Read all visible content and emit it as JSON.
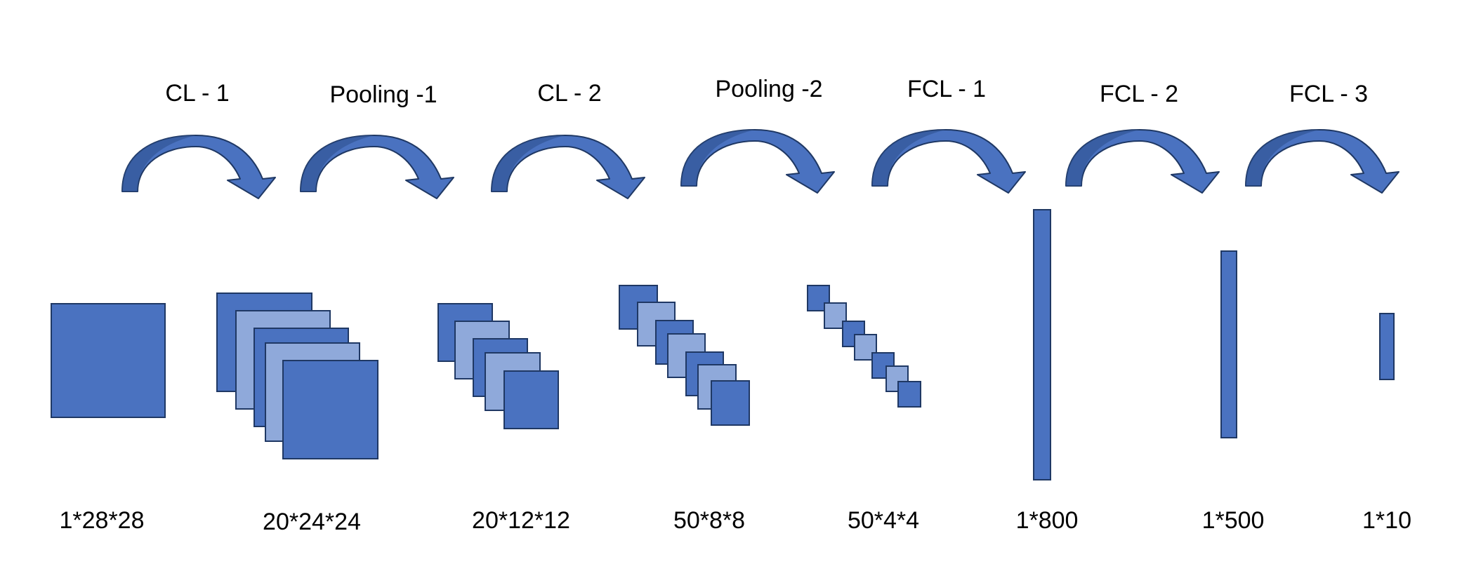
{
  "operations": [
    {
      "label": "CL - 1"
    },
    {
      "label": "Pooling -1"
    },
    {
      "label": "CL - 2"
    },
    {
      "label": "Pooling -2"
    },
    {
      "label": "FCL - 1"
    },
    {
      "label": "FCL - 2"
    },
    {
      "label": "FCL - 3"
    }
  ],
  "layers": [
    {
      "shape": "1*28*28"
    },
    {
      "shape": "20*24*24"
    },
    {
      "shape": "20*12*12"
    },
    {
      "shape": "50*8*8"
    },
    {
      "shape": "50*4*4"
    },
    {
      "shape": "1*800"
    },
    {
      "shape": "1*500"
    },
    {
      "shape": "1*10"
    }
  ],
  "colors": {
    "fill_dark": "#4A72C0",
    "fill_light": "#8FA9DA",
    "stroke": "#1F3864",
    "arrow": "#4A72C0",
    "arrow_shade": "#2F528F"
  },
  "icons": {
    "transition": "curved-arrow-icon",
    "feature_map": "square-stack-icon",
    "fc_vector": "vertical-bar-icon"
  }
}
